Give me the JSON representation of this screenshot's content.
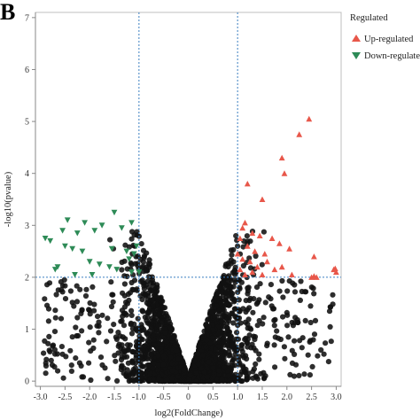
{
  "panel_label": "B",
  "chart_data": {
    "type": "scatter",
    "title": "",
    "xlabel": "log2(FoldChange)",
    "ylabel": "-log10(pvalue)",
    "xlim": [
      -3.1,
      3.1
    ],
    "ylim": [
      -0.1,
      7.1
    ],
    "x_ticks": [
      "-3.0",
      "-2.5",
      "-2.0",
      "-1.5",
      "-1.0",
      "-0.5",
      "0",
      "0.5",
      "1.0",
      "1.5",
      "2.0",
      "2.5",
      "3.0"
    ],
    "y_ticks": [
      "0",
      "1",
      "2",
      "3",
      "4",
      "5",
      "6",
      "7"
    ],
    "thresholds": {
      "x": [
        -1.0,
        1.0
      ],
      "y": 2.0
    },
    "legend": {
      "title": "Regulated",
      "position": "right",
      "entries": [
        {
          "label": "Up-regulated",
          "color": "#e8574a",
          "marker": "triangle-up"
        },
        {
          "label": "Down-regulated",
          "color": "#2e8b57",
          "marker": "triangle-down"
        }
      ]
    },
    "colors": {
      "up": "#e8574a",
      "down": "#2e8b57",
      "ns": "#111111",
      "threshold": "#3a7fc1"
    },
    "series": [
      {
        "name": "Up-regulated",
        "marker": "triangle-up",
        "points": [
          [
            2.45,
            5.05
          ],
          [
            2.25,
            4.75
          ],
          [
            1.9,
            4.3
          ],
          [
            1.95,
            4.0
          ],
          [
            1.2,
            3.8
          ],
          [
            1.5,
            3.5
          ],
          [
            1.15,
            3.05
          ],
          [
            1.1,
            2.95
          ],
          [
            1.3,
            2.85
          ],
          [
            1.05,
            2.75
          ],
          [
            1.45,
            2.8
          ],
          [
            1.7,
            2.75
          ],
          [
            1.85,
            2.65
          ],
          [
            2.05,
            2.55
          ],
          [
            1.2,
            2.6
          ],
          [
            1.35,
            2.5
          ],
          [
            1.55,
            2.45
          ],
          [
            1.0,
            2.45
          ],
          [
            1.1,
            2.35
          ],
          [
            1.25,
            2.3
          ],
          [
            1.4,
            2.2
          ],
          [
            1.6,
            2.3
          ],
          [
            1.75,
            2.15
          ],
          [
            1.9,
            2.2
          ],
          [
            1.3,
            2.1
          ],
          [
            1.15,
            2.05
          ],
          [
            1.5,
            2.05
          ],
          [
            2.1,
            2.05
          ],
          [
            2.55,
            2.4
          ],
          [
            2.6,
            2.0
          ],
          [
            2.5,
            2.0
          ],
          [
            2.55,
            2.02
          ],
          [
            2.95,
            2.15
          ],
          [
            2.98,
            2.17
          ],
          [
            3.0,
            2.1
          ],
          [
            1.05,
            2.15
          ]
        ]
      },
      {
        "name": "Down-regulated",
        "marker": "triangle-down",
        "points": [
          [
            -1.5,
            3.25
          ],
          [
            -2.45,
            3.1
          ],
          [
            -2.1,
            3.05
          ],
          [
            -1.75,
            3.0
          ],
          [
            -1.15,
            3.05
          ],
          [
            -2.55,
            2.9
          ],
          [
            -2.25,
            2.85
          ],
          [
            -1.9,
            2.9
          ],
          [
            -1.35,
            2.95
          ],
          [
            -1.05,
            2.6
          ],
          [
            -2.9,
            2.75
          ],
          [
            -2.8,
            2.7
          ],
          [
            -2.5,
            2.6
          ],
          [
            -2.35,
            2.55
          ],
          [
            -2.15,
            2.5
          ],
          [
            -1.55,
            2.55
          ],
          [
            -1.25,
            2.5
          ],
          [
            -1.1,
            2.45
          ],
          [
            -2.0,
            2.3
          ],
          [
            -1.8,
            2.25
          ],
          [
            -1.6,
            2.2
          ],
          [
            -2.65,
            2.2
          ],
          [
            -2.7,
            2.15
          ],
          [
            -2.3,
            2.05
          ],
          [
            -1.2,
            2.35
          ],
          [
            -1.45,
            2.15
          ],
          [
            -1.0,
            2.1
          ],
          [
            -1.95,
            2.05
          ],
          [
            -1.15,
            2.1
          ]
        ]
      }
    ]
  }
}
